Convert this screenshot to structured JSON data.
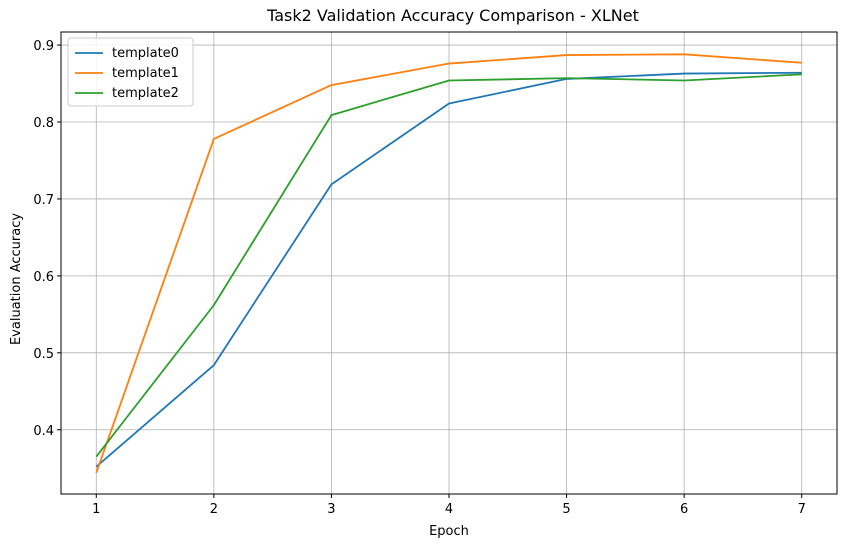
{
  "chart_data": {
    "type": "line",
    "title": "Task2 Validation Accuracy Comparison - XLNet",
    "xlabel": "Epoch",
    "ylabel": "Evaluation Accuracy",
    "x": [
      1,
      2,
      3,
      4,
      5,
      6,
      7
    ],
    "xticks": [
      "1",
      "2",
      "3",
      "4",
      "5",
      "6",
      "7"
    ],
    "xlim": [
      0.7,
      7.3
    ],
    "yticks": [
      "0.4",
      "0.5",
      "0.6",
      "0.7",
      "0.8",
      "0.9"
    ],
    "ytick_values": [
      0.4,
      0.5,
      0.6,
      0.7,
      0.8,
      0.9
    ],
    "ylim": [
      0.3165,
      0.917
    ],
    "grid": true,
    "legend_position": "top-left",
    "series": [
      {
        "name": "template0",
        "color": "#1f77b4",
        "values": [
          0.352,
          0.484,
          0.719,
          0.824,
          0.856,
          0.863,
          0.864
        ]
      },
      {
        "name": "template1",
        "color": "#ff7f0e",
        "values": [
          0.344,
          0.778,
          0.848,
          0.876,
          0.887,
          0.888,
          0.877
        ]
      },
      {
        "name": "template2",
        "color": "#2ca02c",
        "values": [
          0.365,
          0.562,
          0.809,
          0.854,
          0.857,
          0.854,
          0.862
        ]
      }
    ]
  }
}
